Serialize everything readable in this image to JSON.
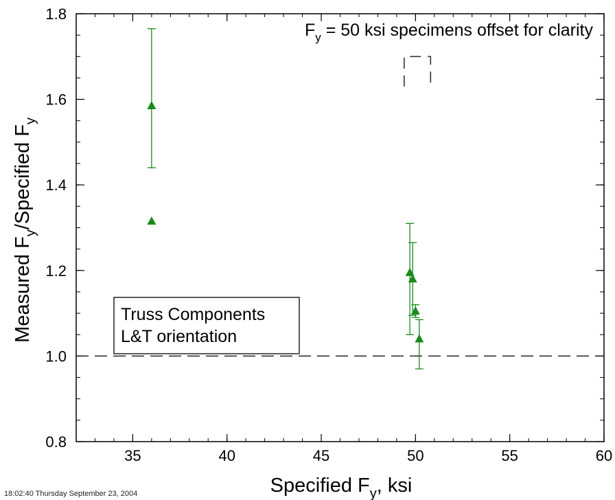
{
  "chart_data": {
    "type": "scatter",
    "xlabel_main": "Specified F",
    "xlabel_sub": "y",
    "xlabel_tail": ", ksi",
    "ylabel_parts": [
      "Measured F",
      "y",
      "/Specified F",
      "y"
    ],
    "xlim": [
      32,
      60
    ],
    "ylim": [
      0.8,
      1.8
    ],
    "x_ticks": [
      35,
      40,
      45,
      50,
      55,
      60
    ],
    "x_tick_labels": [
      "35",
      "40",
      "45",
      "50",
      "55",
      "60"
    ],
    "x_minor_step": 1,
    "y_ticks": [
      0.8,
      1.0,
      1.2,
      1.4,
      1.6,
      1.8
    ],
    "y_tick_labels": [
      "0.8",
      "1.0",
      "1.2",
      "1.4",
      "1.6",
      "1.8"
    ],
    "y_minor_step": 0.05,
    "reference_line": {
      "y": 1.0,
      "style": "dashed"
    },
    "marker": "filled-triangle",
    "marker_color": "#1a8a1a",
    "points": [
      {
        "x": 36.0,
        "y": 1.585,
        "y_low": 1.44,
        "y_high": 1.765
      },
      {
        "x": 36.0,
        "y": 1.315
      },
      {
        "x": 49.7,
        "y": 1.195,
        "y_low": 1.05,
        "y_high": 1.31
      },
      {
        "x": 49.85,
        "y": 1.18,
        "y_low": 1.095,
        "y_high": 1.265
      },
      {
        "x": 50.0,
        "y": 1.105,
        "y_low": 1.09,
        "y_high": 1.12
      },
      {
        "x": 50.2,
        "y": 1.04,
        "y_low": 0.97,
        "y_high": 1.085
      }
    ],
    "offset_bracket": {
      "x_range": [
        49.4,
        50.8
      ],
      "y_range": [
        1.63,
        1.7
      ]
    },
    "annotation_top": {
      "main": "F",
      "sub": "y",
      "rest": " = 50 ksi specimens offset for clarity"
    },
    "annotation_box": {
      "line1": "Truss Components",
      "line2": "L&T orientation"
    }
  },
  "footer_stamp": "18:02:40   Thursday September 23, 2004"
}
